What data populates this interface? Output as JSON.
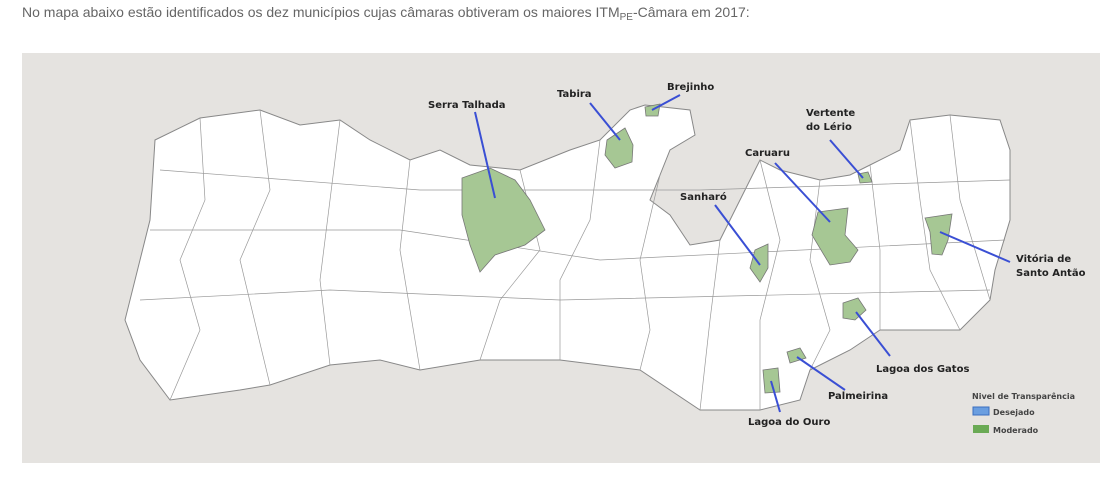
{
  "intro": {
    "text_before": "No mapa abaixo estão identificados os dez municípios cujas câmaras obtiveram os maiores ITM",
    "subscript": "PE",
    "text_after": "-Câmara em 2017:"
  },
  "map": {
    "highlight_color": "#a6c794",
    "line_color": "#3a4fd4",
    "labels": {
      "serra_talhada": "Serra Talhada",
      "tabira": "Tabira",
      "brejinho": "Brejinho",
      "vertente_1": "Vertente",
      "vertente_2": "do Lério",
      "caruaru": "Caruaru",
      "sanharo": "Sanharó",
      "vitoria_1": "Vitória de",
      "vitoria_2": "Santo Antão",
      "lagoa_gatos": "Lagoa dos Gatos",
      "palmeirina": "Palmeirina",
      "lagoa_ouro": "Lagoa do Ouro"
    },
    "legend": {
      "title": "Nivel de Transparência",
      "items": [
        {
          "label": "Desejado",
          "color": "#6a9ee0"
        },
        {
          "label": "Moderado",
          "color": "#6aaa55"
        }
      ]
    }
  }
}
